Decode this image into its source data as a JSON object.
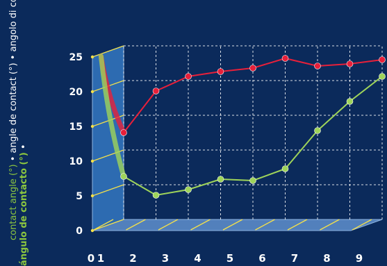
{
  "chart_data": {
    "type": "line",
    "ylabel_lines": [
      [
        {
          "text": "contact angle (°)",
          "color": "green"
        },
        {
          "text": " • angle de contact (°) • angolo di contatto (°)",
          "color": "white"
        }
      ],
      [
        {
          "text": "ángulo de contacto (°)",
          "color": "green"
        },
        {
          "text": " • ",
          "color": "white"
        }
      ]
    ],
    "x_ticks": [
      "0",
      "1",
      "2",
      "3",
      "4",
      "5",
      "6",
      "7",
      "8",
      "9"
    ],
    "y_ticks": [
      "0",
      "5",
      "10",
      "15",
      "20",
      "25"
    ],
    "xlim": [
      0,
      9
    ],
    "ylim": [
      0,
      25
    ],
    "grid": true,
    "series": [
      {
        "color": "#e8203a",
        "start": {
          "x": 0.3,
          "y": 23.5
        },
        "x": [
          1,
          2,
          3,
          4,
          5,
          6,
          7,
          8,
          9
        ],
        "y": [
          12.5,
          18.5,
          20.6,
          21.3,
          21.8,
          23.2,
          22.1,
          22.4,
          23.0
        ]
      },
      {
        "color": "#9fd45a",
        "start": {
          "x": 0.3,
          "y": 23.5
        },
        "x": [
          1,
          2,
          3,
          4,
          5,
          6,
          7,
          8,
          9
        ],
        "y": [
          6.2,
          3.5,
          4.3,
          5.8,
          5.6,
          7.3,
          12.8,
          17.0,
          20.6
        ]
      }
    ]
  }
}
